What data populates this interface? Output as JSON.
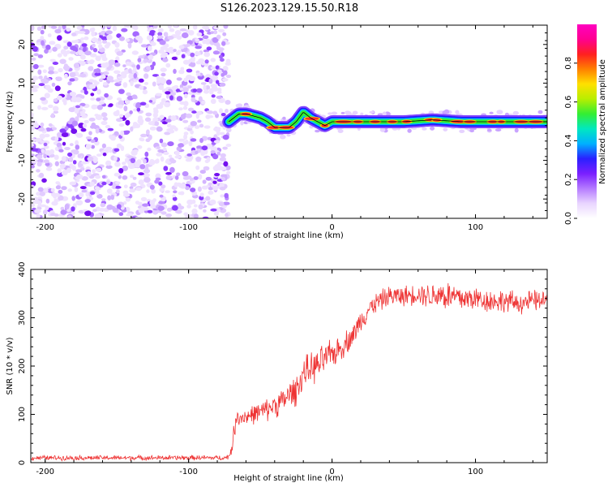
{
  "title": "S126.2023.129.15.50.R18",
  "chart_data": [
    {
      "type": "heatmap",
      "name": "spectrogram",
      "xlabel": "Height of straight line (km)",
      "ylabel": "Frequency (Hz)",
      "xlim": [
        -210,
        150
      ],
      "ylim": [
        -25,
        25
      ],
      "xticks": [
        -200,
        -100,
        0,
        100
      ],
      "xtick_labels": [
        "-200",
        "-100",
        "0",
        "100"
      ],
      "yticks": [
        -20,
        -10,
        0,
        10,
        20
      ],
      "ytick_labels": [
        "-20",
        "-10",
        "0",
        "10",
        "20"
      ],
      "noise_region_x": [
        -210,
        -72
      ],
      "signal_region_x": [
        -72,
        150
      ],
      "signal_frequency_track": {
        "x": [
          -72,
          -65,
          -60,
          -55,
          -50,
          -45,
          -40,
          -35,
          -30,
          -25,
          -20,
          -15,
          -10,
          -5,
          0,
          5,
          10,
          30,
          50,
          70,
          90,
          110,
          130,
          150
        ],
        "y": [
          0,
          2,
          2,
          1.5,
          1,
          0,
          -1.5,
          -1.5,
          -1.5,
          0,
          2.5,
          1,
          0,
          -1,
          0,
          0,
          0,
          0,
          0,
          0.5,
          0,
          0,
          0,
          0
        ]
      },
      "colorbar": {
        "label": "Normalized spectral amplitude",
        "range": [
          0.0,
          1.0
        ],
        "ticks": [
          0.0,
          0.2,
          0.4,
          0.6,
          0.8
        ],
        "tick_labels": [
          "0.0",
          "0.2",
          "0.4",
          "0.6",
          "0.8"
        ],
        "colors": [
          "#ffffff",
          "#e9d5ff",
          "#b57bff",
          "#7a1fff",
          "#2a20ff",
          "#00b0ff",
          "#00e8c0",
          "#33ee33",
          "#b8ee00",
          "#ffe000",
          "#ff8000",
          "#ff2020",
          "#ff0090",
          "#ff00c0"
        ]
      }
    },
    {
      "type": "line",
      "name": "snr",
      "xlabel": "Height of straight line (km)",
      "ylabel": "SNR (10 * v/v)",
      "xlim": [
        -210,
        150
      ],
      "ylim": [
        0,
        400
      ],
      "xticks": [
        -200,
        -100,
        0,
        100
      ],
      "xtick_labels": [
        "-200",
        "-100",
        "0",
        "100"
      ],
      "yticks": [
        0,
        100,
        200,
        300,
        400
      ],
      "ytick_labels": [
        "0",
        "100",
        "200",
        "300",
        "400"
      ],
      "line_color": "#ee3333",
      "series": [
        {
          "name": "SNR",
          "x": [
            -210,
            -180,
            -150,
            -120,
            -90,
            -75,
            -72,
            -70,
            -68,
            -66,
            -60,
            -50,
            -45,
            -40,
            -35,
            -30,
            -25,
            -20,
            -15,
            -10,
            -5,
            0,
            5,
            10,
            15,
            20,
            25,
            30,
            40,
            50,
            60,
            70,
            75,
            80,
            90,
            100,
            110,
            120,
            130,
            140,
            150
          ],
          "y": [
            10,
            10,
            10,
            10,
            10,
            10,
            12,
            30,
            70,
            95,
            95,
            105,
            110,
            120,
            125,
            140,
            150,
            185,
            195,
            200,
            215,
            225,
            235,
            250,
            265,
            295,
            315,
            330,
            345,
            345,
            350,
            345,
            350,
            345,
            340,
            340,
            335,
            335,
            330,
            335,
            335
          ]
        }
      ],
      "noise_amplitude": {
        "x": [
          -210,
          -72,
          -70,
          -50,
          -30,
          -10,
          10,
          30,
          60,
          80,
          100,
          150
        ],
        "y": [
          6,
          6,
          20,
          25,
          35,
          40,
          30,
          25,
          25,
          40,
          30,
          25
        ]
      }
    }
  ]
}
